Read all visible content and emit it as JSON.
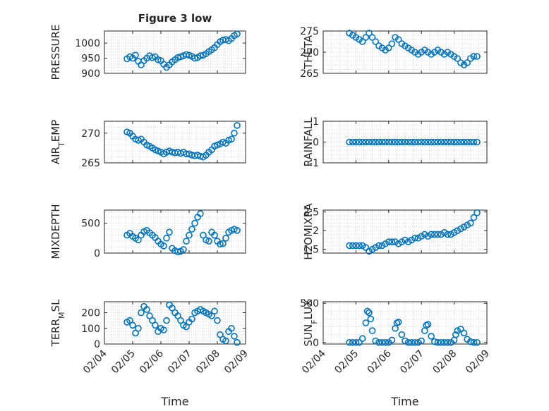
{
  "figure": {
    "title": "Figure 3 low",
    "xlabel": "Time",
    "xtick_labels": [
      "02/04",
      "02/05",
      "02/06",
      "02/07",
      "02/08",
      "02/09"
    ],
    "marker_color": "#0072BD",
    "grid": true
  },
  "chart_data": [
    {
      "type": "scatter",
      "ylabel": "PRESSURE",
      "ylim": [
        900,
        1040
      ],
      "yticks": [
        900,
        950,
        1000
      ],
      "x": [
        4.8,
        4.9,
        5.0,
        5.1,
        5.2,
        5.3,
        5.4,
        5.5,
        5.6,
        5.7,
        5.8,
        5.9,
        6.0,
        6.1,
        6.2,
        6.3,
        6.4,
        6.5,
        6.6,
        6.7,
        6.8,
        6.9,
        7.0,
        7.1,
        7.2,
        7.3,
        7.4,
        7.5,
        7.6,
        7.7,
        7.8,
        7.9,
        8.0,
        8.1,
        8.2,
        8.3,
        8.4,
        8.5,
        8.6,
        8.7
      ],
      "y": [
        948,
        955,
        950,
        960,
        940,
        928,
        942,
        950,
        958,
        952,
        955,
        945,
        942,
        930,
        920,
        928,
        938,
        945,
        952,
        955,
        958,
        962,
        960,
        956,
        950,
        952,
        958,
        960,
        965,
        972,
        978,
        985,
        995,
        1005,
        1010,
        1012,
        1008,
        1015,
        1025,
        1030
      ]
    },
    {
      "type": "scatter",
      "ylabel": "THETA",
      "ylim": [
        265,
        275
      ],
      "yticks": [
        265,
        270,
        275
      ],
      "x": [
        4.8,
        4.9,
        5.0,
        5.1,
        5.2,
        5.3,
        5.4,
        5.5,
        5.6,
        5.7,
        5.8,
        5.9,
        6.0,
        6.1,
        6.2,
        6.3,
        6.4,
        6.5,
        6.6,
        6.7,
        6.8,
        6.9,
        7.0,
        7.1,
        7.2,
        7.3,
        7.4,
        7.5,
        7.6,
        7.7,
        7.8,
        7.9,
        8.0,
        8.1,
        8.2,
        8.3,
        8.4,
        8.5,
        8.6,
        8.7
      ],
      "y": [
        274.5,
        274.0,
        273.5,
        273.0,
        272.5,
        273.5,
        274.5,
        273.5,
        272.5,
        271.5,
        271.0,
        270.5,
        271.0,
        272.0,
        273.5,
        273.0,
        272.0,
        271.5,
        271.0,
        270.5,
        270.0,
        269.5,
        270.0,
        270.5,
        270.0,
        269.5,
        270.0,
        270.5,
        270.0,
        269.5,
        270.0,
        269.5,
        269.0,
        268.5,
        267.5,
        267.0,
        267.5,
        268.5,
        269.0,
        269.0
      ]
    },
    {
      "type": "scatter",
      "ylabel": "AIR",
      "ylabel_sub": "T",
      "ylabel_rest": "EMP",
      "ylim": [
        265,
        272
      ],
      "yticks": [
        265,
        270
      ],
      "x": [
        4.8,
        4.9,
        5.0,
        5.1,
        5.2,
        5.3,
        5.4,
        5.5,
        5.6,
        5.7,
        5.8,
        5.9,
        6.0,
        6.1,
        6.2,
        6.3,
        6.4,
        6.5,
        6.6,
        6.7,
        6.8,
        6.9,
        7.0,
        7.1,
        7.2,
        7.3,
        7.4,
        7.5,
        7.6,
        7.7,
        7.8,
        7.9,
        8.0,
        8.1,
        8.2,
        8.3,
        8.4,
        8.5,
        8.6,
        8.7
      ],
      "y": [
        270.2,
        270.0,
        269.5,
        269.0,
        268.8,
        269.0,
        268.5,
        268.0,
        267.8,
        267.5,
        267.2,
        267.0,
        266.8,
        266.5,
        266.8,
        267.0,
        266.8,
        266.7,
        266.8,
        266.6,
        266.8,
        266.5,
        266.5,
        266.3,
        266.2,
        266.3,
        266.1,
        266.0,
        266.3,
        266.8,
        267.2,
        267.8,
        268.0,
        268.2,
        268.5,
        268.3,
        268.8,
        269.0,
        270.0,
        271.3
      ]
    },
    {
      "type": "scatter",
      "ylabel": "RAINFALL",
      "ylim": [
        -1,
        1
      ],
      "yticks": [
        -1,
        0,
        1
      ],
      "x": [
        4.8,
        4.9,
        5.0,
        5.1,
        5.2,
        5.3,
        5.4,
        5.5,
        5.6,
        5.7,
        5.8,
        5.9,
        6.0,
        6.1,
        6.2,
        6.3,
        6.4,
        6.5,
        6.6,
        6.7,
        6.8,
        6.9,
        7.0,
        7.1,
        7.2,
        7.3,
        7.4,
        7.5,
        7.6,
        7.7,
        7.8,
        7.9,
        8.0,
        8.1,
        8.2,
        8.3,
        8.4,
        8.5,
        8.6,
        8.7
      ],
      "y": [
        0,
        0,
        0,
        0,
        0,
        0,
        0,
        0,
        0,
        0,
        0,
        0,
        0,
        0,
        0,
        0,
        0,
        0,
        0,
        0,
        0,
        0,
        0,
        0,
        0,
        0,
        0,
        0,
        0,
        0,
        0,
        0,
        0,
        0,
        0,
        0,
        0,
        0,
        0,
        0
      ]
    },
    {
      "type": "scatter",
      "ylabel": "MIXDEPTH",
      "ylim": [
        0,
        720
      ],
      "yticks": [
        0,
        500
      ],
      "x": [
        4.8,
        4.9,
        5.0,
        5.1,
        5.2,
        5.3,
        5.4,
        5.5,
        5.6,
        5.7,
        5.8,
        5.9,
        6.0,
        6.1,
        6.2,
        6.3,
        6.4,
        6.5,
        6.6,
        6.7,
        6.8,
        6.9,
        7.0,
        7.1,
        7.2,
        7.3,
        7.4,
        7.5,
        7.6,
        7.7,
        7.8,
        7.9,
        8.0,
        8.1,
        8.2,
        8.3,
        8.4,
        8.5,
        8.6,
        8.7
      ],
      "y": [
        300,
        330,
        280,
        250,
        220,
        300,
        360,
        380,
        340,
        300,
        260,
        200,
        150,
        120,
        250,
        350,
        80,
        40,
        20,
        30,
        60,
        200,
        300,
        400,
        500,
        600,
        660,
        300,
        220,
        200,
        350,
        300,
        200,
        150,
        160,
        250,
        350,
        380,
        400,
        380
      ]
    },
    {
      "type": "scatter",
      "ylabel": "H2OMIXRA",
      "ylim": [
        1.4,
        2.55
      ],
      "yticks": [
        1.5,
        2,
        2.5
      ],
      "x": [
        4.8,
        4.9,
        5.0,
        5.1,
        5.2,
        5.3,
        5.4,
        5.5,
        5.6,
        5.7,
        5.8,
        5.9,
        6.0,
        6.1,
        6.2,
        6.3,
        6.4,
        6.5,
        6.6,
        6.7,
        6.8,
        6.9,
        7.0,
        7.1,
        7.2,
        7.3,
        7.4,
        7.5,
        7.6,
        7.7,
        7.8,
        7.9,
        8.0,
        8.1,
        8.2,
        8.3,
        8.4,
        8.5,
        8.6,
        8.7
      ],
      "y": [
        1.6,
        1.6,
        1.6,
        1.6,
        1.6,
        1.55,
        1.45,
        1.5,
        1.55,
        1.6,
        1.6,
        1.65,
        1.7,
        1.7,
        1.7,
        1.65,
        1.7,
        1.75,
        1.7,
        1.75,
        1.8,
        1.8,
        1.85,
        1.9,
        1.85,
        1.9,
        1.9,
        1.9,
        1.9,
        1.95,
        1.9,
        1.9,
        1.95,
        2.0,
        2.05,
        2.1,
        2.15,
        2.2,
        2.35,
        2.48
      ]
    },
    {
      "type": "scatter",
      "ylabel": "TERR",
      "ylabel_sub": "M",
      "ylabel_rest": "SL",
      "ylim": [
        0,
        270
      ],
      "yticks": [
        0,
        100,
        200
      ],
      "x": [
        4.8,
        4.9,
        5.0,
        5.1,
        5.2,
        5.3,
        5.4,
        5.5,
        5.6,
        5.7,
        5.8,
        5.9,
        6.0,
        6.1,
        6.2,
        6.3,
        6.4,
        6.5,
        6.6,
        6.7,
        6.8,
        6.9,
        7.0,
        7.1,
        7.2,
        7.3,
        7.4,
        7.5,
        7.6,
        7.7,
        7.8,
        7.9,
        8.0,
        8.1,
        8.2,
        8.3,
        8.4,
        8.5,
        8.6,
        8.7
      ],
      "y": [
        140,
        150,
        120,
        70,
        100,
        200,
        240,
        220,
        180,
        150,
        120,
        80,
        100,
        90,
        150,
        250,
        230,
        200,
        180,
        150,
        120,
        110,
        140,
        160,
        200,
        210,
        220,
        210,
        200,
        190,
        180,
        210,
        150,
        60,
        30,
        20,
        80,
        100,
        50,
        10
      ]
    },
    {
      "type": "scatter",
      "ylabel": "SUN",
      "ylabel_sub": "F",
      "ylabel_rest": "LUX",
      "ylim": [
        -20,
        520
      ],
      "yticks": [
        0,
        500
      ],
      "x": [
        4.8,
        4.9,
        5.0,
        5.1,
        5.2,
        5.3,
        5.35,
        5.4,
        5.45,
        5.5,
        5.6,
        5.7,
        5.8,
        5.9,
        6.0,
        6.1,
        6.2,
        6.25,
        6.3,
        6.4,
        6.5,
        6.6,
        6.7,
        6.8,
        6.9,
        7.0,
        7.1,
        7.15,
        7.2,
        7.3,
        7.4,
        7.5,
        7.6,
        7.7,
        7.8,
        7.9,
        8.0,
        8.05,
        8.1,
        8.2,
        8.3,
        8.4,
        8.5,
        8.6,
        8.7
      ],
      "y": [
        0,
        0,
        0,
        0,
        50,
        250,
        400,
        380,
        300,
        150,
        20,
        0,
        0,
        0,
        0,
        30,
        180,
        250,
        260,
        100,
        20,
        0,
        0,
        0,
        0,
        20,
        150,
        220,
        230,
        80,
        10,
        0,
        0,
        0,
        0,
        0,
        30,
        100,
        150,
        170,
        120,
        40,
        10,
        0,
        0
      ]
    }
  ]
}
